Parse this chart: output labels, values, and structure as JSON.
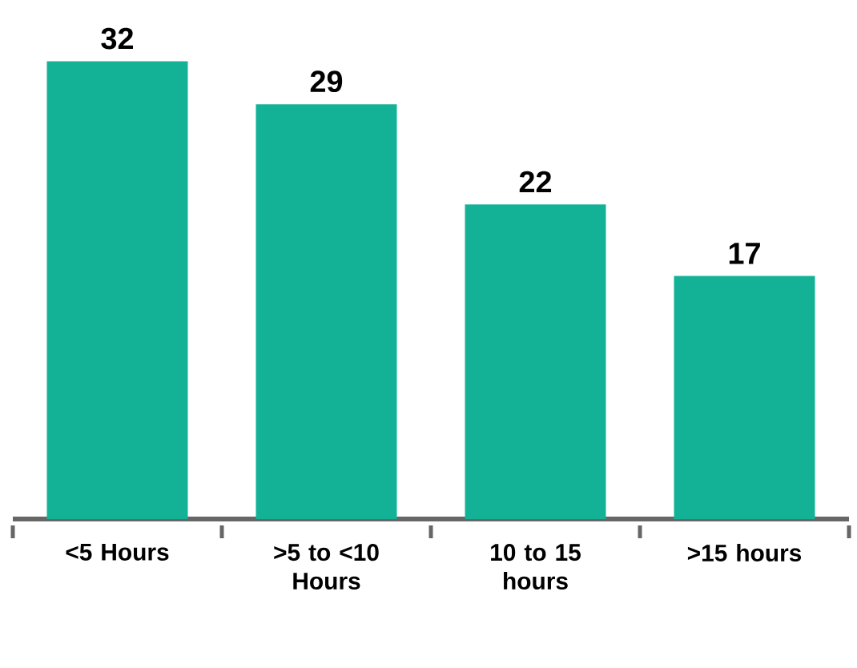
{
  "chart_data": {
    "type": "bar",
    "categories": [
      "<5 Hours",
      ">5 to <10 Hours",
      "10 to 15 hours",
      ">15 hours"
    ],
    "values": [
      32,
      29,
      22,
      17
    ],
    "color": "#13b297",
    "data_labels": true
  }
}
